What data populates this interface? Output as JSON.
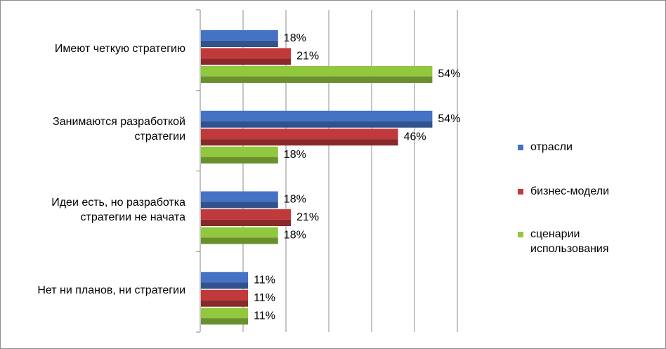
{
  "chart_data": {
    "type": "bar",
    "orientation": "horizontal",
    "categories": [
      "Имеют четкую стратегию",
      "Занимаются разработкой\nстратегии",
      "Идеи есть, но разработка\nстратегии не начата",
      "Нет ни планов, ни стратегии"
    ],
    "series": [
      {
        "name": "отрасли",
        "color": "#4472c4",
        "values": [
          18,
          54,
          18,
          11
        ],
        "labels": [
          "18%",
          "54%",
          "18%",
          "11%"
        ]
      },
      {
        "name": "бизнес-модели",
        "color": "#c0393b",
        "values": [
          21,
          46,
          21,
          11
        ],
        "labels": [
          "21%",
          "46%",
          "21%",
          "11%"
        ]
      },
      {
        "name": "сценарии\nиспользования",
        "color": "#92c83e",
        "values": [
          54,
          18,
          18,
          11
        ],
        "labels": [
          "54%",
          "18%",
          "18%",
          "11%"
        ]
      }
    ],
    "xlim": [
      0,
      60
    ],
    "grid": true,
    "legend_position": "right"
  }
}
